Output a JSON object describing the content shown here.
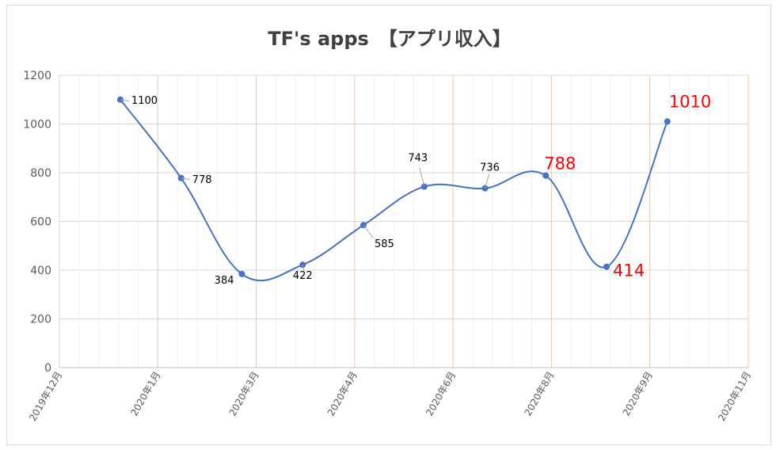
{
  "chart_data": {
    "type": "line",
    "title": "TF's apps　【アプリ収入】",
    "xlabel": "",
    "ylabel": "",
    "ylim": [
      0,
      1200
    ],
    "yticks": [
      0,
      200,
      400,
      600,
      800,
      1000,
      1200
    ],
    "xticks": [
      "2019年12月",
      "2020年1月",
      "2020年3月",
      "2020年4月",
      "2020年6月",
      "2020年8月",
      "2020年9月",
      "2020年11月"
    ],
    "grid": true,
    "smooth": true,
    "line_color": "#4472c4",
    "highlight_color": "#ff0000",
    "series": [
      {
        "name": "",
        "values": [
          1100,
          778,
          384,
          422,
          585,
          743,
          736,
          788,
          414,
          1010
        ],
        "labels": [
          "1100",
          "778",
          "384",
          "422",
          "585",
          "743",
          "736",
          "788",
          "414",
          "1010"
        ],
        "highlight": [
          false,
          false,
          false,
          false,
          false,
          false,
          false,
          true,
          true,
          true
        ]
      }
    ]
  }
}
